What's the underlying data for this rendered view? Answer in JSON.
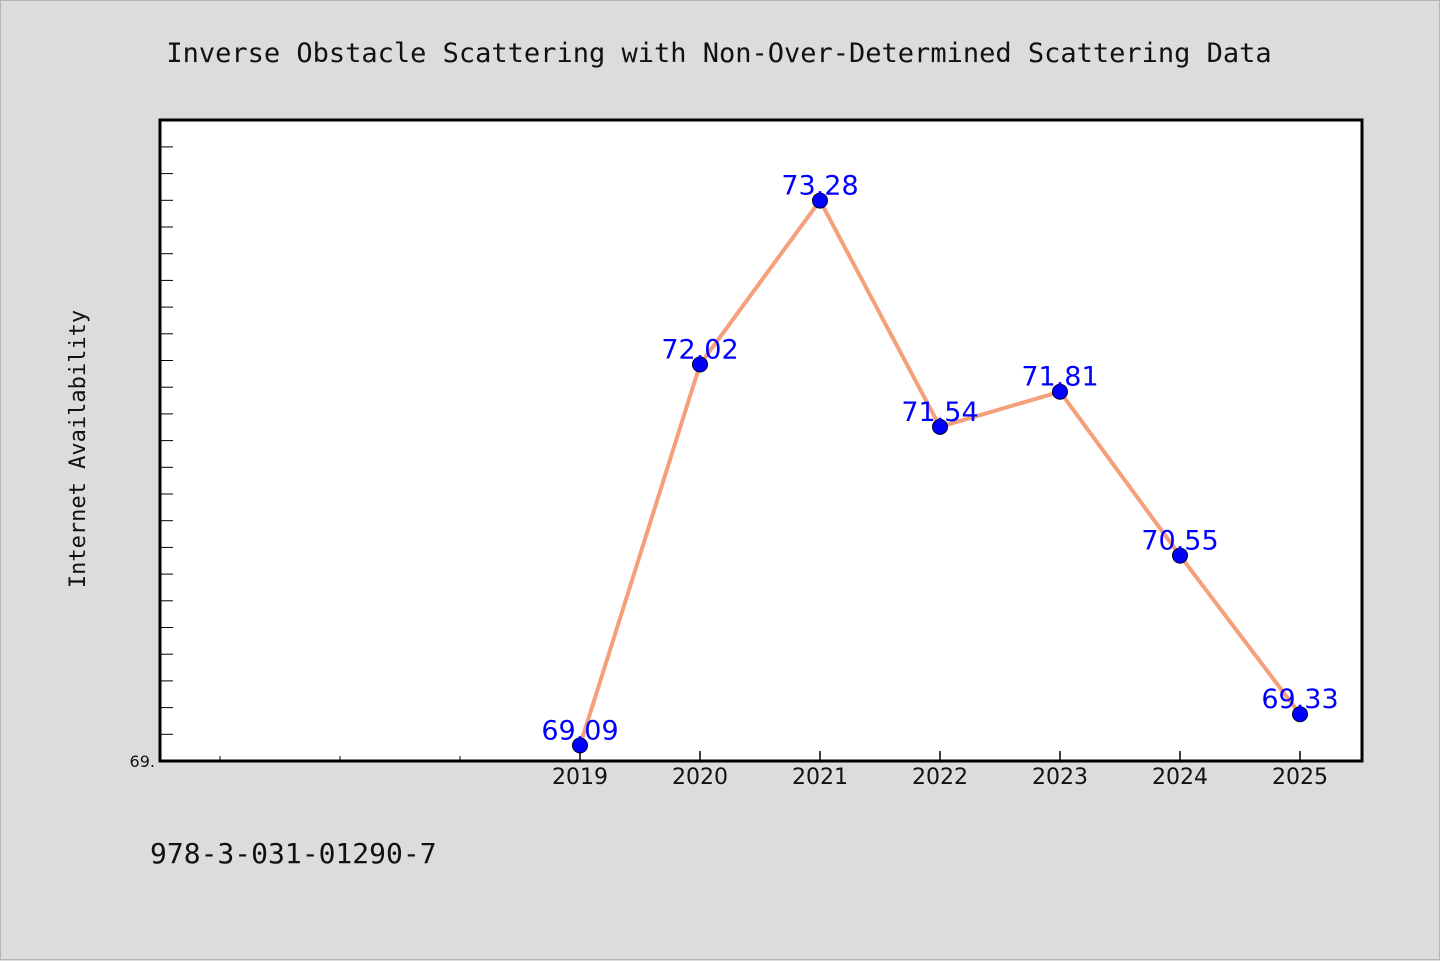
{
  "footer": {
    "isbn": "978-3-031-01290-7"
  },
  "chart_data": {
    "type": "line",
    "title": "Inverse Obstacle Scattering with Non-Over-Determined Scattering Data",
    "xlabel": "",
    "ylabel": "Internet Availability",
    "x": [
      "2019",
      "2020",
      "2021",
      "2022",
      "2023",
      "2024",
      "2025"
    ],
    "series": [
      {
        "values": [
          69.09,
          72.02,
          73.28,
          71.54,
          71.81,
          70.55,
          69.33
        ]
      }
    ],
    "y_min_tick_label": "69.",
    "ylim": [
      68.97,
      73.9
    ],
    "grid": false,
    "legend": "none",
    "colors": {
      "line": "#f4a07a",
      "marker": "#0000ff",
      "labels": "#0000ff"
    }
  }
}
